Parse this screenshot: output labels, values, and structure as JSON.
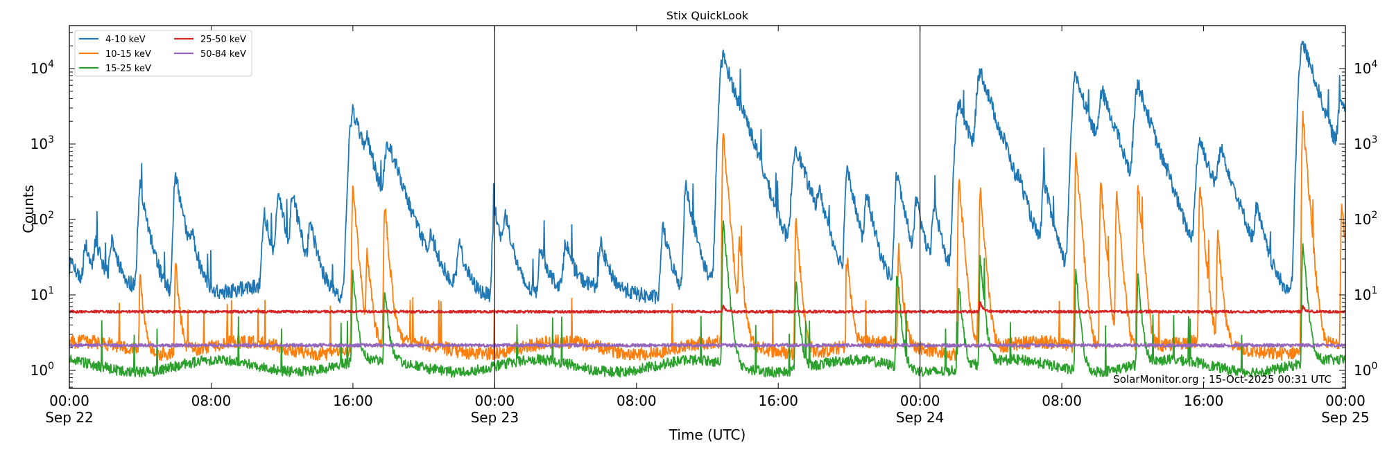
{
  "title": "Stix QuickLook",
  "xlabel": "Time (UTC)",
  "ylabel": "Counts",
  "watermark": "SolarMonitor.org : 15-Oct-2025 00:31 UTC",
  "x_ticks": [
    {
      "hours": 0,
      "time": "00:00",
      "date": "Sep 22"
    },
    {
      "hours": 8,
      "time": "08:00",
      "date": ""
    },
    {
      "hours": 16,
      "time": "16:00",
      "date": ""
    },
    {
      "hours": 24,
      "time": "00:00",
      "date": "Sep 23"
    },
    {
      "hours": 32,
      "time": "08:00",
      "date": ""
    },
    {
      "hours": 40,
      "time": "16:00",
      "date": ""
    },
    {
      "hours": 48,
      "time": "00:00",
      "date": "Sep 24"
    },
    {
      "hours": 56,
      "time": "08:00",
      "date": ""
    },
    {
      "hours": 64,
      "time": "16:00",
      "date": ""
    },
    {
      "hours": 72,
      "time": "00:00",
      "date": "Sep 25"
    }
  ],
  "y_ticks": [
    {
      "exp": 0,
      "base": "10",
      "sup": "0"
    },
    {
      "exp": 1,
      "base": "10",
      "sup": "1"
    },
    {
      "exp": 2,
      "base": "10",
      "sup": "2"
    },
    {
      "exp": 3,
      "base": "10",
      "sup": "3"
    },
    {
      "exp": 4,
      "base": "10",
      "sup": "4"
    }
  ],
  "day_dividers_hours": [
    24,
    48
  ],
  "legend": [
    {
      "label": "4-10 keV",
      "color": "#1f77b4"
    },
    {
      "label": "10-15 keV",
      "color": "#ff7f0e"
    },
    {
      "label": "15-25 keV",
      "color": "#2ca02c"
    },
    {
      "label": "25-50 keV",
      "color": "#d62728"
    },
    {
      "label": "50-84 keV",
      "color": "#9467bd"
    }
  ],
  "chart_data": {
    "type": "line",
    "title": "Stix QuickLook",
    "xlabel": "Time (UTC)",
    "ylabel": "Counts",
    "yscale": "log",
    "xlim": [
      "2025-09-22 00:00",
      "2025-09-25 00:00"
    ],
    "ylim": [
      0.57,
      37000
    ],
    "x_tick_labels": [
      "00:00\nSep 22",
      "08:00",
      "16:00",
      "00:00\nSep 23",
      "08:00",
      "16:00",
      "00:00\nSep 24",
      "08:00",
      "16:00",
      "00:00\nSep 25"
    ],
    "y_tick_labels": [
      "10^0",
      "10^1",
      "10^2",
      "10^3",
      "10^4"
    ],
    "legend_position": "upper left",
    "grid": false,
    "annotations": [
      "SolarMonitor.org : 15-Oct-2025 00:31 UTC"
    ],
    "series": [
      {
        "name": "4-10 keV",
        "color": "#1f77b4",
        "baseline": 11,
        "peaks_hours_values": [
          [
            0.1,
            30
          ],
          [
            0.9,
            45
          ],
          [
            1.5,
            45
          ],
          [
            2.4,
            45
          ],
          [
            4.0,
            270
          ],
          [
            6.0,
            380
          ],
          [
            6.9,
            45
          ],
          [
            11.0,
            120
          ],
          [
            11.8,
            200
          ],
          [
            12.6,
            200
          ],
          [
            13.6,
            80
          ],
          [
            16.0,
            2700
          ],
          [
            16.8,
            500
          ],
          [
            18.0,
            950
          ],
          [
            20.4,
            45
          ],
          [
            22.0,
            45
          ],
          [
            24.0,
            140
          ],
          [
            24.6,
            100
          ],
          [
            26.6,
            45
          ],
          [
            28.0,
            50
          ],
          [
            30.0,
            45
          ],
          [
            33.5,
            80
          ],
          [
            34.8,
            280
          ],
          [
            36.9,
            14500
          ],
          [
            38.0,
            600
          ],
          [
            38.2,
            110
          ],
          [
            41.0,
            900
          ],
          [
            42.3,
            150
          ],
          [
            43.9,
            500
          ],
          [
            45.0,
            200
          ],
          [
            46.7,
            400
          ],
          [
            47.8,
            160
          ],
          [
            48.8,
            150
          ],
          [
            50.2,
            3500
          ],
          [
            51.4,
            9000
          ],
          [
            52.8,
            160
          ],
          [
            53.6,
            120
          ],
          [
            55.0,
            300
          ],
          [
            56.8,
            8000
          ],
          [
            58.3,
            4200
          ],
          [
            59.0,
            250
          ],
          [
            60.3,
            6000
          ],
          [
            62.0,
            80
          ],
          [
            63.8,
            1100
          ],
          [
            65.0,
            700
          ],
          [
            67.0,
            120
          ],
          [
            69.6,
            22000
          ],
          [
            71.8,
            3300
          ],
          [
            72,
            30
          ]
        ]
      },
      {
        "name": "10-15 keV",
        "color": "#ff7f0e",
        "baseline": 2,
        "peaks_hours_values": [
          [
            4.0,
            18
          ],
          [
            6.0,
            25
          ],
          [
            16.0,
            300
          ],
          [
            16.8,
            40
          ],
          [
            17.8,
            160
          ],
          [
            36.9,
            1400
          ],
          [
            37.8,
            50
          ],
          [
            41.0,
            100
          ],
          [
            43.9,
            30
          ],
          [
            46.8,
            40
          ],
          [
            50.2,
            350
          ],
          [
            51.4,
            250
          ],
          [
            56.8,
            700
          ],
          [
            58.2,
            300
          ],
          [
            59.1,
            250
          ],
          [
            60.3,
            280
          ],
          [
            63.8,
            300
          ],
          [
            64.8,
            60
          ],
          [
            69.6,
            2300
          ],
          [
            71.8,
            180
          ]
        ]
      },
      {
        "name": "15-25 keV",
        "color": "#2ca02c",
        "baseline": 1.15,
        "peaks_hours_values": [
          [
            16.0,
            20
          ],
          [
            17.8,
            12
          ],
          [
            36.9,
            100
          ],
          [
            41.0,
            15
          ],
          [
            46.7,
            20
          ],
          [
            50.2,
            14
          ],
          [
            51.4,
            30
          ],
          [
            56.8,
            20
          ],
          [
            60.3,
            18
          ],
          [
            69.6,
            50
          ]
        ]
      },
      {
        "name": "25-50 keV",
        "color": "#d62728",
        "baseline": 6,
        "peaks_hours_values": [
          [
            36.9,
            7
          ],
          [
            51.4,
            8
          ],
          [
            69.6,
            7
          ]
        ]
      },
      {
        "name": "50-84 keV",
        "color": "#9467bd",
        "baseline": 2.15,
        "peaks_hours_values": []
      }
    ]
  }
}
